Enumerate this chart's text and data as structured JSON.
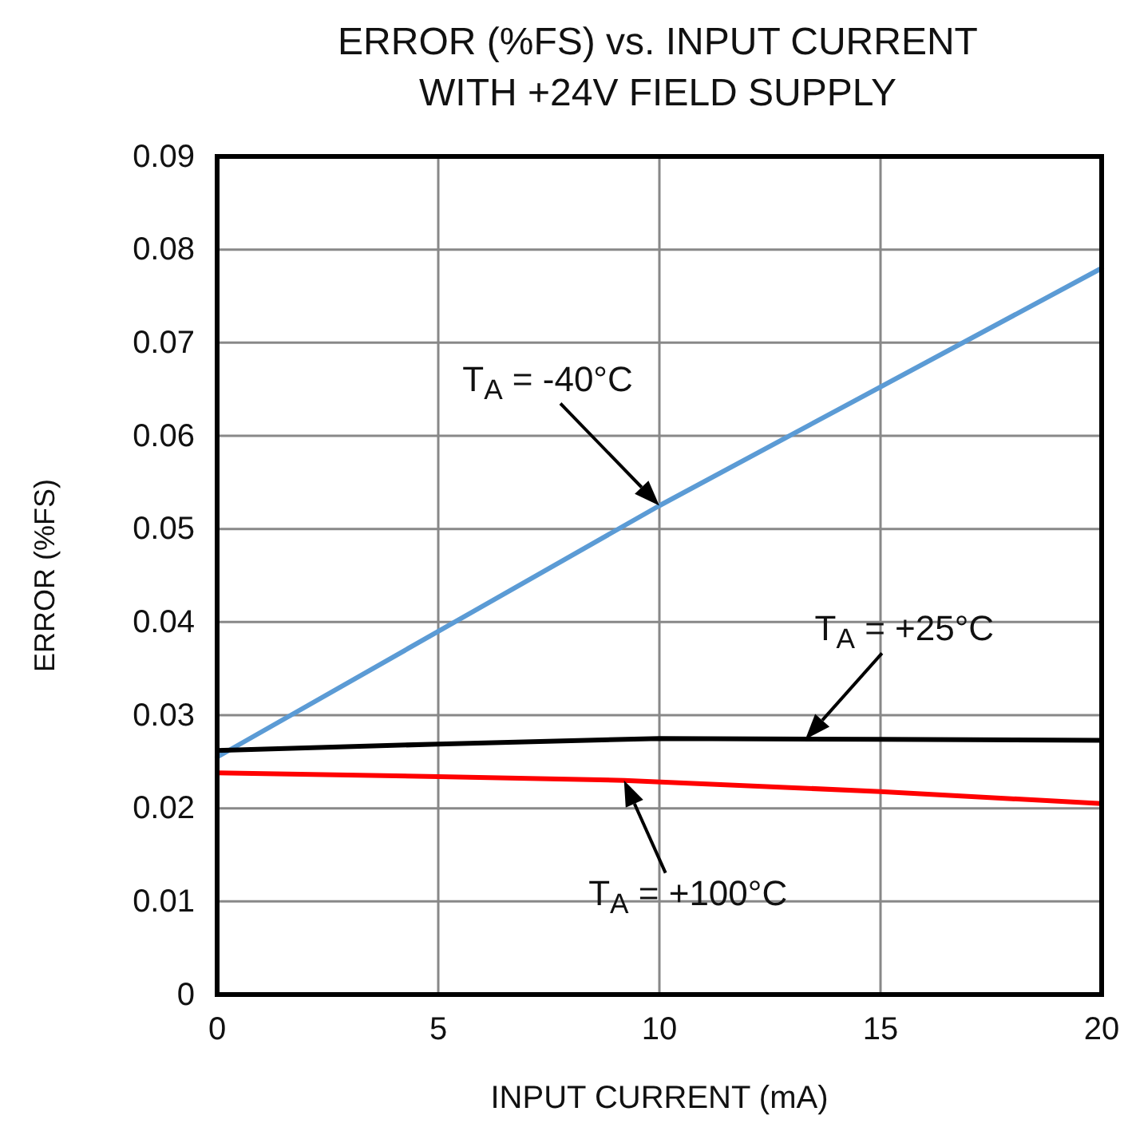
{
  "chart_data": {
    "type": "line",
    "title": "ERROR (%FS) vs. INPUT CURRENT\nWITH +24V FIELD SUPPLY",
    "xlabel": "INPUT CURRENT (mA)",
    "ylabel": "ERROR (%FS)",
    "series": [
      {
        "color": "#5b9bd5",
        "x": [
          0,
          10,
          20
        ],
        "values": [
          0.0255,
          0.0525,
          0.078
        ]
      },
      {
        "color": "#000000",
        "x": [
          0,
          5,
          10,
          15,
          20
        ],
        "values": [
          0.0262,
          0.0269,
          0.0275,
          0.0274,
          0.0273
        ]
      },
      {
        "color": "#ff0000",
        "x": [
          0,
          5,
          9.2,
          15,
          20
        ],
        "values": [
          0.0238,
          0.0234,
          0.023,
          0.0218,
          0.0205
        ]
      }
    ],
    "annotations": [
      {
        "text": "T$_{A}$ = -40°C",
        "x": 10,
        "y": 0.0525
      },
      {
        "text": "T$_{A}$ = +25°C",
        "x": 13.3,
        "y": 0.0274
      },
      {
        "text": "T$_{A}$ = +100°C",
        "x": 9.2,
        "y": 0.023
      }
    ],
    "xlim": [
      0,
      20
    ],
    "xticks": [
      0,
      5,
      10,
      15,
      20
    ],
    "ylim": [
      0,
      0.09
    ],
    "yticks": [
      0,
      0.01,
      0.02,
      0.03,
      0.04,
      0.05,
      0.06,
      0.07,
      0.08,
      0.09
    ],
    "grid": true,
    "marker": "none",
    "line_style": "solid"
  }
}
